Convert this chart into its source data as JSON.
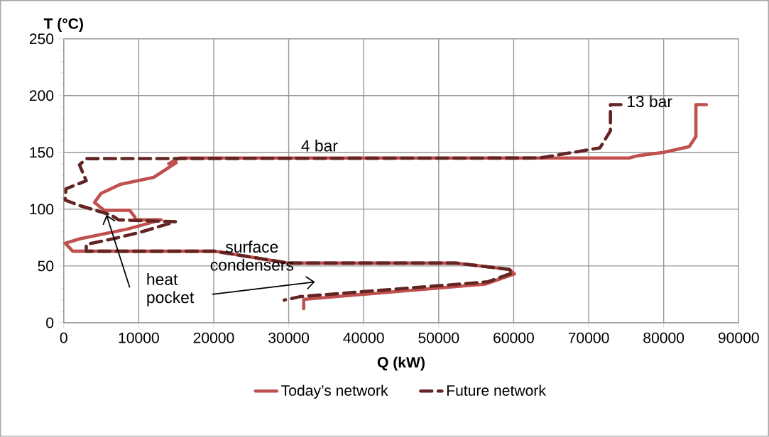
{
  "chart_data": {
    "type": "line",
    "xlabel": "Q (kW)",
    "ylabel": "T (°C)",
    "xlim": [
      0,
      90000
    ],
    "ylim": [
      0,
      250
    ],
    "xticks": [
      0,
      10000,
      20000,
      30000,
      40000,
      50000,
      60000,
      70000,
      80000,
      90000
    ],
    "yticks": [
      0,
      50,
      100,
      150,
      200,
      250
    ],
    "grid": true,
    "legend": "bottom",
    "annotations": [
      "4 bar",
      "13 bar",
      "surface condensers",
      {
        "text": "heat pocket",
        "x": 5700,
        "y": 95
      }
    ],
    "series": [
      {
        "name": "Today’s network",
        "color": "#c0504d",
        "line_style": "solid",
        "x": [
          85700,
          84300,
          84300,
          83400,
          80000,
          76500,
          75400,
          15400,
          14000,
          15000,
          12000,
          7600,
          5000,
          4100,
          5400,
          8800,
          9500,
          9500,
          13000,
          8500,
          2200,
          200,
          1200,
          20100,
          22000,
          30000,
          52400,
          59400,
          60100,
          56200,
          32000,
          32000
        ],
        "values": [
          192,
          192,
          164,
          155,
          150,
          147,
          145,
          145,
          140,
          141,
          128,
          122,
          114,
          106,
          99,
          99,
          93,
          90.6,
          90.6,
          82.5,
          74,
          70,
          63,
          63,
          61,
          52.5,
          52.5,
          47,
          43,
          34,
          20.6,
          12.5
        ]
      },
      {
        "name": "Future network",
        "color": "#632523",
        "line_style": "dashed",
        "x": [
          74300,
          72900,
          72900,
          71500,
          63400,
          3000,
          2100,
          3000,
          300,
          200,
          2200,
          6300,
          7300,
          14900,
          10100,
          6600,
          3000,
          3000,
          20100,
          22000,
          30000,
          52400,
          59400,
          59900,
          56500,
          31500,
          29400
        ],
        "values": [
          192,
          192,
          169,
          154,
          145,
          144.5,
          139,
          125,
          118,
          108,
          103,
          95,
          90.6,
          89,
          79.5,
          74,
          69,
          63,
          63,
          61,
          52.5,
          52.5,
          47,
          44,
          36,
          23,
          20
        ]
      }
    ]
  }
}
